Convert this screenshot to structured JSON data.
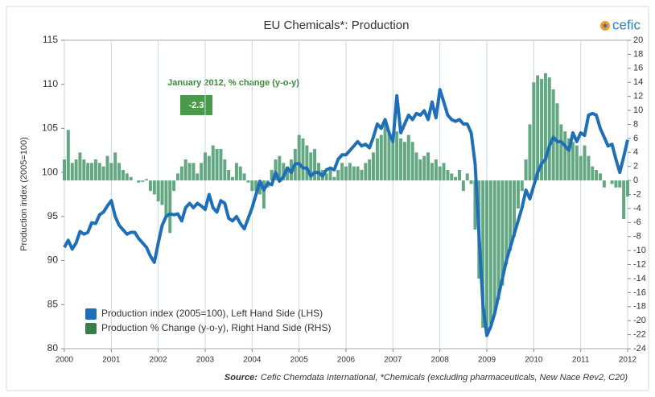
{
  "chart_data": {
    "type": "combo",
    "title": "EU Chemicals*: Production",
    "logo": "cefic",
    "y_label": "Production index (2005=100)",
    "annotations": [
      {
        "text": "January 2012, % change (y-o-y)"
      },
      {
        "text": "-2.3"
      }
    ],
    "source_label": "Source:",
    "source_text": "Cefic Chemdata International, *Chemicals (excluding pharmaceuticals, New Nace Rev2, C20)",
    "xlim": [
      2000,
      2012
    ],
    "xticks": [
      2000,
      2001,
      2002,
      2003,
      2004,
      2005,
      2006,
      2007,
      2008,
      2009,
      2010,
      2011,
      2012
    ],
    "ylim": [
      80,
      115
    ],
    "yticks": [
      80,
      85,
      90,
      95,
      100,
      105,
      110,
      115
    ],
    "y2lim": [
      -24,
      20
    ],
    "y2ticks": [
      -24,
      -22,
      -20,
      -18,
      -16,
      -14,
      -12,
      -10,
      -8,
      -6,
      -4,
      -2,
      0,
      2,
      4,
      6,
      8,
      10,
      12,
      14,
      16,
      18,
      20
    ],
    "grid": "x",
    "legend": "bottom-left",
    "x": [
      2000,
      2000.083,
      2000.167,
      2000.25,
      2000.333,
      2000.417,
      2000.5,
      2000.583,
      2000.667,
      2000.75,
      2000.833,
      2000.917,
      2001,
      2001.083,
      2001.167,
      2001.25,
      2001.333,
      2001.417,
      2001.5,
      2001.583,
      2001.667,
      2001.75,
      2001.833,
      2001.917,
      2002,
      2002.083,
      2002.167,
      2002.25,
      2002.333,
      2002.417,
      2002.5,
      2002.583,
      2002.667,
      2002.75,
      2002.833,
      2002.917,
      2003,
      2003.083,
      2003.167,
      2003.25,
      2003.333,
      2003.417,
      2003.5,
      2003.583,
      2003.667,
      2003.75,
      2003.833,
      2003.917,
      2004,
      2004.083,
      2004.167,
      2004.25,
      2004.333,
      2004.417,
      2004.5,
      2004.583,
      2004.667,
      2004.75,
      2004.833,
      2004.917,
      2005,
      2005.083,
      2005.167,
      2005.25,
      2005.333,
      2005.417,
      2005.5,
      2005.583,
      2005.667,
      2005.75,
      2005.833,
      2005.917,
      2006,
      2006.083,
      2006.167,
      2006.25,
      2006.333,
      2006.417,
      2006.5,
      2006.583,
      2006.667,
      2006.75,
      2006.833,
      2006.917,
      2007,
      2007.083,
      2007.167,
      2007.25,
      2007.333,
      2007.417,
      2007.5,
      2007.583,
      2007.667,
      2007.75,
      2007.833,
      2007.917,
      2008,
      2008.083,
      2008.167,
      2008.25,
      2008.333,
      2008.417,
      2008.5,
      2008.583,
      2008.667,
      2008.75,
      2008.833,
      2008.917,
      2009,
      2009.083,
      2009.167,
      2009.25,
      2009.333,
      2009.417,
      2009.5,
      2009.583,
      2009.667,
      2009.75,
      2009.833,
      2009.917,
      2010,
      2010.083,
      2010.167,
      2010.25,
      2010.333,
      2010.417,
      2010.5,
      2010.583,
      2010.667,
      2010.75,
      2010.833,
      2010.917,
      2011,
      2011.083,
      2011.167,
      2011.25,
      2011.333,
      2011.417,
      2011.5,
      2011.583,
      2011.667,
      2011.75,
      2011.833,
      2011.917,
      2012
    ],
    "series": [
      {
        "name": "Production index (2005=100), Left Hand Side (LHS)",
        "type": "line",
        "color": "#1f6fb8",
        "legend_color": "#1f6fb8",
        "values": [
          91.5,
          92.3,
          91.3,
          92,
          93.3,
          93,
          93.2,
          94.3,
          94.2,
          95.2,
          95.5,
          96.2,
          96.8,
          95,
          94,
          93.5,
          93,
          93.2,
          93.2,
          92.5,
          92,
          91.5,
          90.5,
          89.8,
          92,
          94,
          95,
          95.3,
          95.2,
          95.3,
          94.5,
          96,
          96.5,
          96,
          96.5,
          96.2,
          95.8,
          97.5,
          96,
          95.5,
          96.8,
          96.5,
          94.8,
          94.5,
          95,
          94.2,
          93.6,
          94.8,
          96,
          97.5,
          99,
          98,
          98.8,
          98.6,
          100,
          99,
          99.5,
          100.5,
          100,
          101,
          101,
          100.5,
          100.5,
          99.6,
          100,
          100,
          99.6,
          100.3,
          100.5,
          100.3,
          101.5,
          102,
          102,
          102.5,
          103,
          103.5,
          103,
          103.2,
          102.8,
          104,
          105.5,
          105,
          106,
          104.5,
          103.5,
          108.7,
          104.5,
          105.5,
          106.5,
          106,
          106.7,
          106.5,
          107,
          106,
          108,
          106.2,
          109.4,
          108,
          106.5,
          106,
          105.8,
          106,
          105.5,
          105.5,
          104.5,
          101,
          93,
          85,
          81.5,
          82.5,
          84,
          86,
          88,
          90,
          91.5,
          93,
          94.5,
          96,
          98,
          97,
          98.5,
          100,
          101,
          101.5,
          103,
          104,
          103.5,
          103.5,
          103,
          102.5,
          104.5,
          103.5,
          104.5,
          104.2,
          106.5,
          106.7,
          106.5,
          105,
          104,
          103,
          103.2,
          101.5,
          100,
          101.8,
          103.7
        ]
      },
      {
        "name": "Production  % Change (y-o-y), Right Hand Side (RHS)",
        "type": "bar",
        "axis": "y2",
        "color": "#63a883",
        "legend_color": "#3d7d45",
        "values": [
          3,
          7.2,
          2.5,
          3,
          4,
          3,
          2.5,
          2.5,
          3,
          2.5,
          2,
          3.5,
          2.5,
          4,
          2.5,
          1.5,
          1,
          0.5,
          0,
          -0.3,
          -0.2,
          0.2,
          -1.5,
          -2,
          -3,
          -3.5,
          -5,
          -7.5,
          -1.5,
          1,
          2,
          3,
          2.5,
          2.5,
          1,
          2.5,
          4,
          3.5,
          5,
          4.5,
          4.5,
          3,
          1.5,
          0.5,
          2.5,
          2,
          1,
          -0.3,
          -1.5,
          -1.5,
          -2,
          -4,
          -1,
          1.5,
          3,
          3.5,
          2.5,
          2,
          3,
          4.5,
          6.5,
          6,
          5,
          4,
          4.5,
          2.5,
          1.5,
          1,
          1.5,
          0.5,
          1.5,
          2.5,
          2,
          2.5,
          2,
          2,
          1.5,
          2.5,
          3,
          4,
          6,
          6.5,
          8,
          7,
          6,
          7,
          6,
          5.5,
          6.5,
          5.5,
          4,
          3,
          3.5,
          4,
          2.5,
          3,
          2,
          2.5,
          1.5,
          1,
          0.5,
          1.5,
          -1.5,
          1,
          -0.5,
          -7,
          -14,
          -21,
          -22,
          -20.5,
          -19,
          -17,
          -15,
          -12,
          -10,
          -8,
          -4,
          -1.5,
          3,
          8,
          14,
          15,
          14.5,
          15.3,
          14.7,
          13,
          11,
          8,
          7,
          6,
          5.5,
          5,
          3.5,
          5,
          3.5,
          2,
          1.5,
          1,
          -1,
          0,
          -0.5,
          -1,
          -1,
          -5.5,
          -2.3
        ]
      }
    ]
  }
}
